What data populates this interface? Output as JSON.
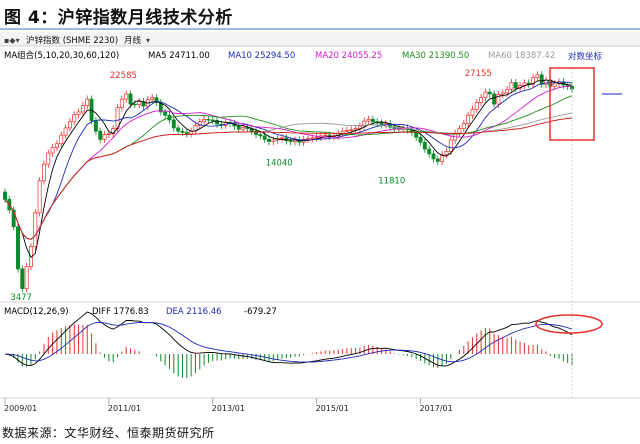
{
  "figure": {
    "title": "图 4：沪锌指数月线技术分析",
    "source": "数据来源：文华财经、恒泰期货研究所"
  },
  "toolbar": {
    "symbol": "沪锌指数 (SHME 2230)",
    "period": "月线"
  },
  "legend_upper": {
    "name": "MA组合(5,10,20,30,60,120)",
    "ma5": "MA5 24711.00",
    "ma10": "MA10 25294.50",
    "ma20": "MA20 24055.25",
    "ma30": "MA30 21390.50",
    "ma60": "MA60 18387.42",
    "log_scale": "对数坐标"
  },
  "legend_lower": {
    "name": "MACD(12,26,9)",
    "diff": "DIFF 1776.83",
    "dea": "DEA 2116.46",
    "macd": "-679.27"
  },
  "colors": {
    "up": "#e8302c",
    "down": "#0a8a2a",
    "ma5": "#000000",
    "ma10": "#1d2bb8",
    "ma20": "#d21ad2",
    "ma30": "#1e8f1e",
    "ma60": "#9a9a9a",
    "ma120": "#d21b1b",
    "highlight": "#e8302c"
  },
  "chart_data": {
    "type": "candlestick",
    "x_ticks": [
      "2009/01",
      "2011/01",
      "2013/01",
      "2015/01",
      "2017/01"
    ],
    "y_scale": "log",
    "annotations": [
      {
        "label": "22585",
        "date": "2010/11",
        "value": 22585
      },
      {
        "label": "14040",
        "date": "2013/11",
        "value": 14040
      },
      {
        "label": "11810",
        "date": "2016/01",
        "value": 11810
      },
      {
        "label": "27155",
        "date": "2017/09",
        "value": 27155
      },
      {
        "label": "3477",
        "date": "2008/12",
        "value": 3477
      }
    ],
    "monthly_close": [
      8200,
      7400,
      6300,
      4200,
      3477,
      4300,
      5200,
      7200,
      9800,
      11500,
      12800,
      13500,
      14000,
      15200,
      16300,
      17300,
      18500,
      19000,
      20200,
      21500,
      17500,
      15800,
      14600,
      15300,
      15400,
      16200,
      19800,
      21500,
      22600,
      20500,
      20400,
      21000,
      20100,
      21400,
      21800,
      20800,
      19000,
      18400,
      17600,
      16300,
      15800,
      15600,
      15400,
      15800,
      16700,
      17300,
      17700,
      17600,
      17500,
      16900,
      16700,
      17200,
      17000,
      16600,
      16100,
      16400,
      16200,
      15800,
      15300,
      15100,
      14600,
      14300,
      14500,
      14700,
      14800,
      14400,
      14300,
      14500,
      14200,
      14600,
      14700,
      14800,
      14900,
      15100,
      15200,
      15000,
      15100,
      15500,
      15800,
      15900,
      16000,
      16200,
      16600,
      17400,
      17700,
      17300,
      17100,
      16800,
      17000,
      16400,
      16200,
      16100,
      16300,
      16000,
      15600,
      14900,
      14200,
      13300,
      12700,
      12100,
      11810,
      12600,
      13000,
      14500,
      15500,
      16200,
      17000,
      18400,
      19500,
      20800,
      21800,
      23000,
      22600,
      20500,
      22500,
      22800,
      23600,
      25200,
      23900,
      24500,
      25100,
      24800,
      26500,
      27155,
      24800,
      25800,
      24300,
      24900,
      25400,
      24600,
      24300,
      23700
    ],
    "macd": {
      "diff": 1776.83,
      "dea": 2116.46,
      "histogram": -679.27
    }
  }
}
